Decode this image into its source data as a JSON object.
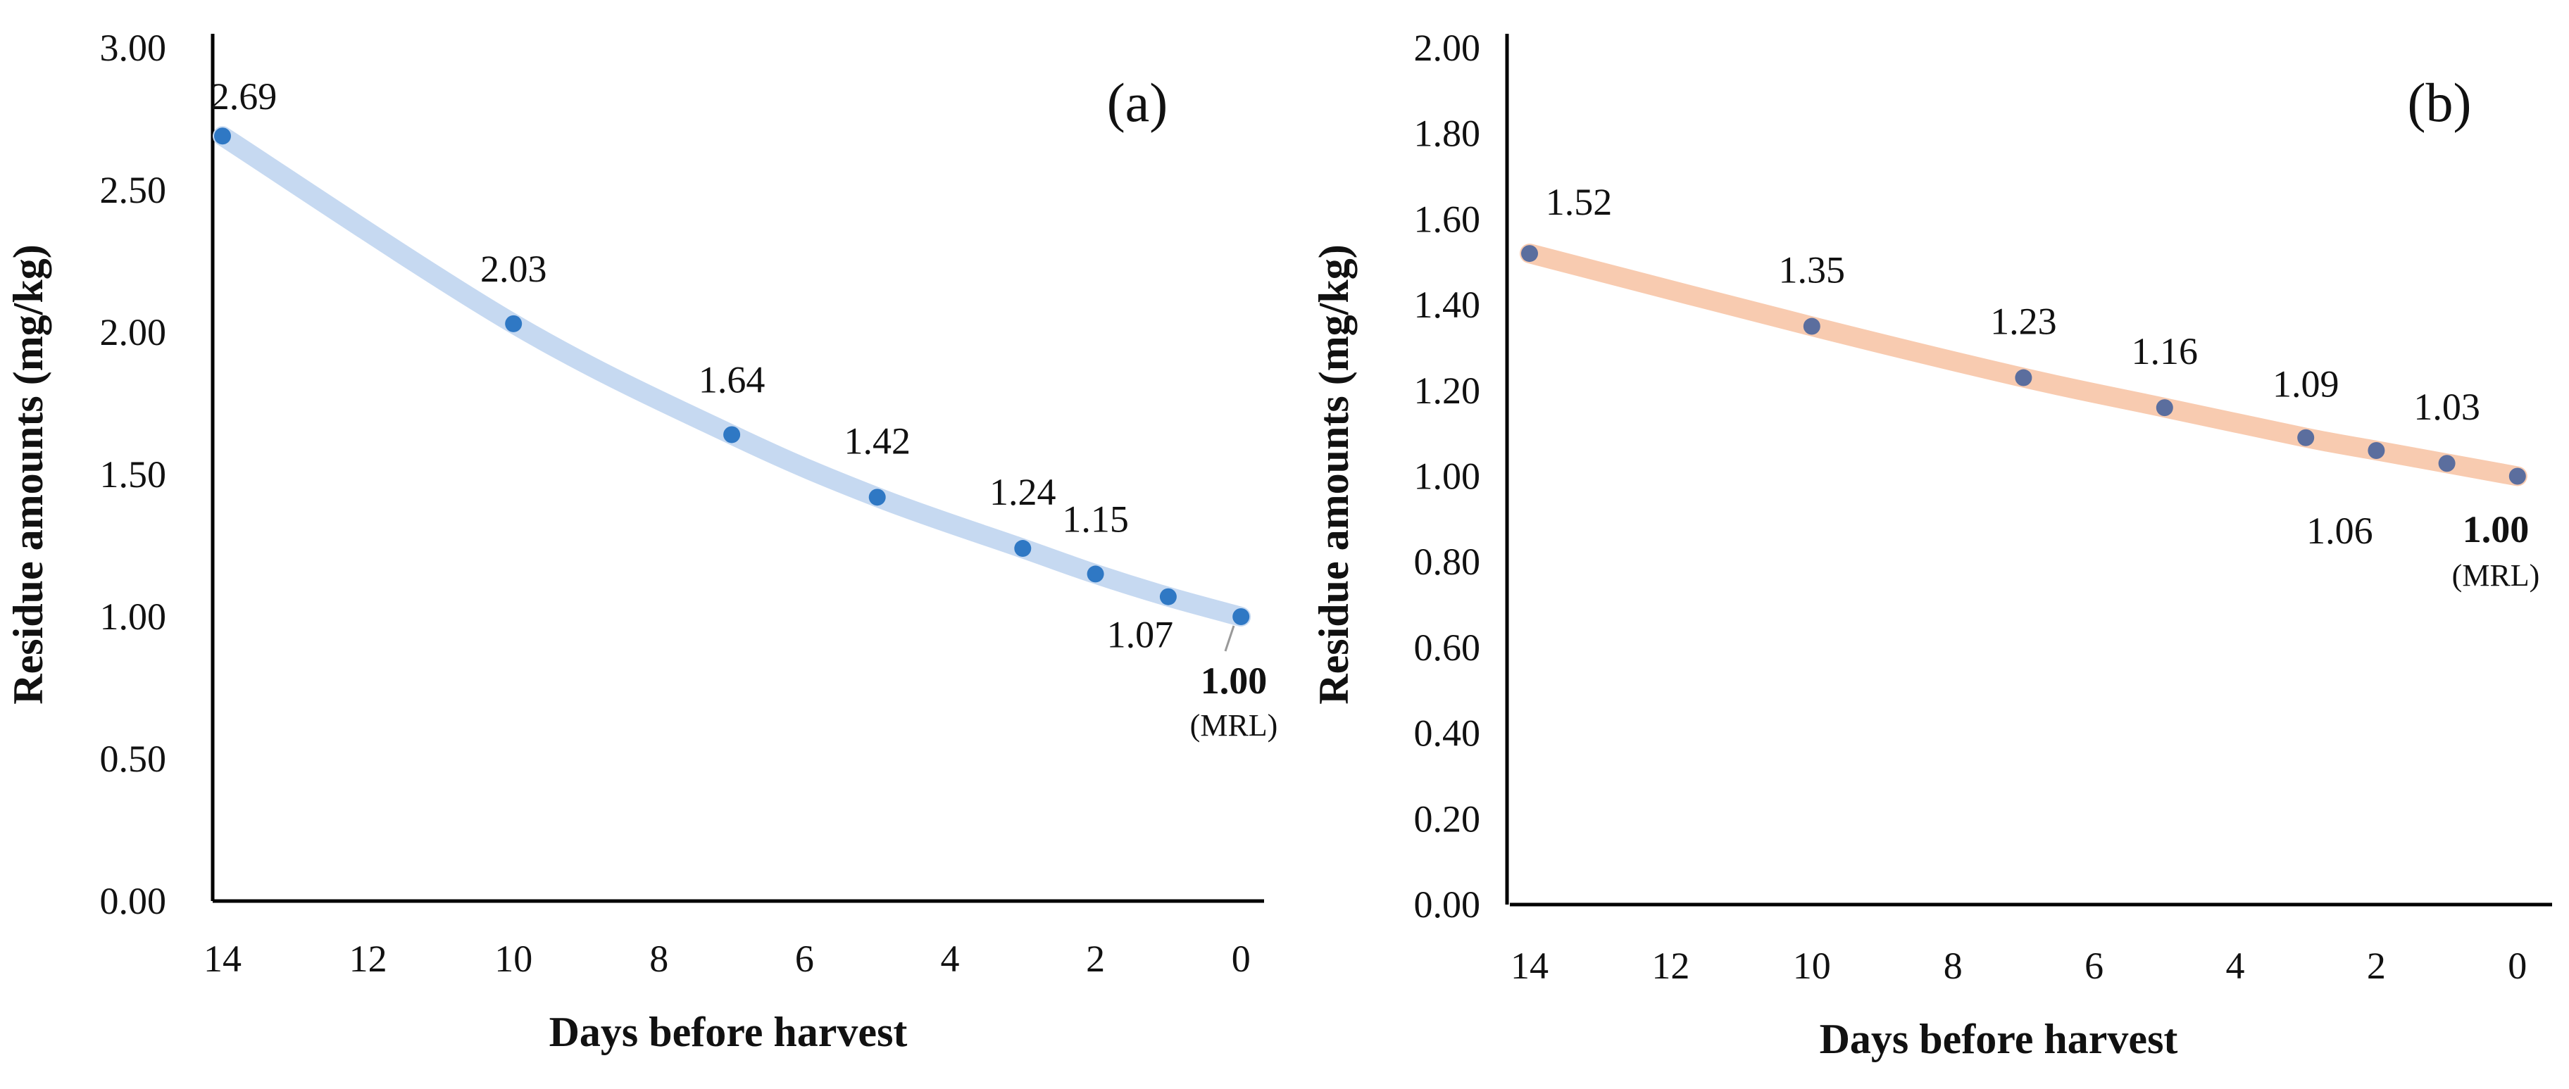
{
  "chart_data": [
    {
      "type": "line",
      "panel_label": "(a)",
      "xlabel": "Days before harvest",
      "ylabel": "Residue amounts (mg/kg)",
      "x_ticks": [
        "14",
        "12",
        "10",
        "8",
        "6",
        "4",
        "2",
        "0"
      ],
      "x_tick_values": [
        14,
        12,
        10,
        8,
        6,
        4,
        2,
        0
      ],
      "xlim": [
        14,
        0
      ],
      "y_ticks": [
        "0.00",
        "0.50",
        "1.00",
        "1.50",
        "2.00",
        "2.50",
        "3.00"
      ],
      "y_tick_values": [
        0,
        0.5,
        1.0,
        1.5,
        2.0,
        2.5,
        3.0
      ],
      "ylim": [
        0,
        3.0
      ],
      "series": [
        {
          "name": "Residue",
          "line_color": "#c6d9f1",
          "marker_color": "#2f78c4",
          "x": [
            14,
            10,
            7,
            5,
            3,
            2,
            1,
            0
          ],
          "y": [
            2.69,
            2.03,
            1.64,
            1.42,
            1.24,
            1.15,
            1.07,
            1.0
          ],
          "labels": [
            "2.69",
            "2.03",
            "1.64",
            "1.42",
            "1.24",
            "1.15",
            "1.07",
            "1.00"
          ]
        }
      ],
      "annotation": {
        "value": "1.00",
        "note": "(MRL)"
      }
    },
    {
      "type": "line",
      "panel_label": "(b)",
      "xlabel": "Days before harvest",
      "ylabel": "Residue amounts (mg/kg)",
      "x_ticks": [
        "14",
        "12",
        "10",
        "8",
        "6",
        "4",
        "2",
        "0"
      ],
      "x_tick_values": [
        14,
        12,
        10,
        8,
        6,
        4,
        2,
        0
      ],
      "xlim": [
        14,
        0
      ],
      "y_ticks": [
        "0.00",
        "0.20",
        "0.40",
        "0.60",
        "0.80",
        "1.00",
        "1.20",
        "1.40",
        "1.60",
        "1.80",
        "2.00"
      ],
      "y_tick_values": [
        0,
        0.2,
        0.4,
        0.6,
        0.8,
        1.0,
        1.2,
        1.4,
        1.6,
        1.8,
        2.0
      ],
      "ylim": [
        0,
        2.0
      ],
      "series": [
        {
          "name": "Residue",
          "line_color": "#f8cbb0",
          "marker_color": "#5b6e9e",
          "x": [
            14,
            10,
            7,
            5,
            3,
            2,
            1,
            0
          ],
          "y": [
            1.52,
            1.35,
            1.23,
            1.16,
            1.09,
            1.06,
            1.03,
            1.0
          ],
          "labels": [
            "1.52",
            "1.35",
            "1.23",
            "1.16",
            "1.09",
            "1.06",
            "1.03",
            "1.00"
          ]
        }
      ],
      "annotation": {
        "value": "1.00",
        "note": "(MRL)"
      }
    }
  ]
}
